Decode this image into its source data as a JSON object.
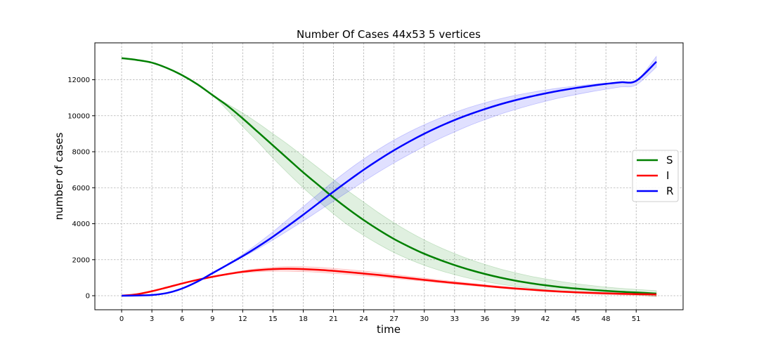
{
  "chart_data": {
    "type": "line",
    "title": "Number Of Cases 44x53 5 vertices",
    "xlabel": "time",
    "ylabel": "number of cases",
    "xlim": [
      -2.65,
      55.65
    ],
    "ylim": [
      -780,
      14050
    ],
    "xticks": [
      0,
      3,
      6,
      9,
      12,
      15,
      18,
      21,
      24,
      27,
      30,
      33,
      36,
      39,
      42,
      45,
      48,
      51
    ],
    "yticks": [
      0,
      2000,
      4000,
      6000,
      8000,
      10000,
      12000
    ],
    "grid": true,
    "legend_position": "center-right",
    "x": [
      0,
      1.5,
      3,
      4.5,
      6,
      7.5,
      9,
      10.5,
      12,
      13.5,
      15,
      16.5,
      18,
      19.5,
      21,
      22.5,
      24,
      25.5,
      27,
      28.5,
      30,
      31.5,
      33,
      34.5,
      36,
      37.5,
      39,
      40.5,
      42,
      43.5,
      45,
      46.5,
      48,
      49.5,
      51,
      53
    ],
    "series": [
      {
        "name": "S",
        "color": "#008000",
        "values": [
          13200,
          13100,
          12950,
          12650,
          12250,
          11750,
          11150,
          10550,
          9850,
          9100,
          8350,
          7600,
          6850,
          6150,
          5450,
          4800,
          4200,
          3650,
          3150,
          2720,
          2330,
          2000,
          1700,
          1440,
          1210,
          1010,
          840,
          700,
          580,
          480,
          400,
          330,
          270,
          220,
          180,
          120
        ],
        "band_low": [
          13200,
          13100,
          12950,
          12650,
          12250,
          11750,
          11150,
          10300,
          9400,
          8550,
          7650,
          6800,
          6000,
          5250,
          4550,
          3900,
          3350,
          2850,
          2400,
          2020,
          1690,
          1410,
          1170,
          960,
          790,
          640,
          520,
          420,
          330,
          260,
          200,
          150,
          110,
          80,
          50,
          -50
        ],
        "band_high": [
          13200,
          13100,
          12950,
          12650,
          12250,
          11750,
          11150,
          10650,
          10150,
          9600,
          9000,
          8400,
          7750,
          7100,
          6450,
          5800,
          5200,
          4600,
          4050,
          3550,
          3100,
          2700,
          2340,
          2020,
          1740,
          1490,
          1280,
          1090,
          930,
          790,
          670,
          570,
          480,
          410,
          350,
          280
        ]
      },
      {
        "name": "I",
        "color": "#ff0000",
        "values": [
          0,
          80,
          250,
          460,
          680,
          880,
          1050,
          1200,
          1330,
          1420,
          1480,
          1500,
          1480,
          1440,
          1380,
          1310,
          1230,
          1150,
          1060,
          970,
          880,
          790,
          710,
          630,
          550,
          470,
          400,
          340,
          280,
          230,
          190,
          160,
          130,
          110,
          90,
          70
        ],
        "band_low": [
          0,
          80,
          250,
          460,
          680,
          880,
          1040,
          1170,
          1270,
          1330,
          1360,
          1360,
          1340,
          1300,
          1240,
          1180,
          1110,
          1040,
          960,
          880,
          800,
          720,
          640,
          560,
          490,
          420,
          350,
          290,
          230,
          180,
          140,
          100,
          70,
          40,
          20,
          -30
        ],
        "band_high": [
          0,
          80,
          250,
          460,
          680,
          890,
          1070,
          1240,
          1390,
          1500,
          1580,
          1620,
          1610,
          1580,
          1520,
          1450,
          1370,
          1280,
          1180,
          1080,
          980,
          880,
          790,
          700,
          610,
          530,
          450,
          380,
          320,
          270,
          230,
          200,
          170,
          150,
          130,
          110
        ]
      },
      {
        "name": "R",
        "color": "#0000ff",
        "values": [
          0,
          10,
          40,
          150,
          400,
          780,
          1250,
          1720,
          2200,
          2720,
          3280,
          3880,
          4500,
          5140,
          5780,
          6400,
          7000,
          7560,
          8080,
          8560,
          9000,
          9400,
          9760,
          10080,
          10370,
          10630,
          10860,
          11060,
          11240,
          11400,
          11540,
          11660,
          11770,
          11860,
          11940,
          13000
        ],
        "band_low": [
          0,
          10,
          40,
          150,
          400,
          780,
          1250,
          1720,
          2150,
          2600,
          3100,
          3620,
          4150,
          4700,
          5250,
          5800,
          6350,
          6880,
          7380,
          7850,
          8300,
          8720,
          9100,
          9460,
          9780,
          10080,
          10340,
          10580,
          10800,
          11000,
          11170,
          11330,
          11470,
          11600,
          11710,
          12700
        ],
        "band_high": [
          0,
          10,
          40,
          150,
          400,
          780,
          1250,
          1760,
          2300,
          2900,
          3550,
          4250,
          4950,
          5650,
          6350,
          7000,
          7600,
          8150,
          8650,
          9100,
          9500,
          9860,
          10180,
          10470,
          10720,
          10940,
          11130,
          11290,
          11430,
          11550,
          11650,
          11740,
          11810,
          11870,
          11920,
          13300
        ]
      }
    ]
  }
}
